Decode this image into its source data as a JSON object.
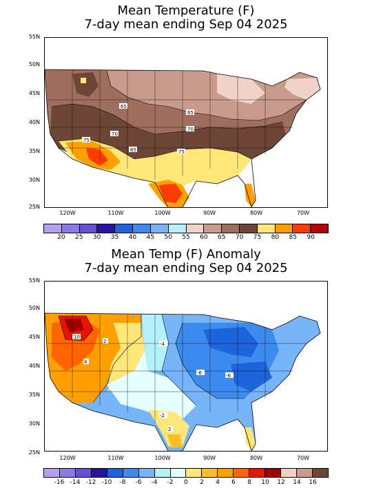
{
  "panels": [
    {
      "title_line1": "Mean Temperature (F)",
      "title_line2": "7-day mean ending Sep 04 2025",
      "lat_labels": [
        "55N",
        "50N",
        "45N",
        "40N",
        "35N",
        "30N",
        "25N"
      ],
      "lon_labels": [
        "120W",
        "110W",
        "100W",
        "90W",
        "80W",
        "70W"
      ],
      "contour_labels": [
        "65",
        "65",
        "70",
        "70",
        "75",
        "65",
        "75"
      ],
      "legend_labels": [
        "20",
        "25",
        "30",
        "35",
        "40",
        "45",
        "50",
        "55",
        "60",
        "65",
        "70",
        "75",
        "80",
        "85",
        "90"
      ],
      "legend_colors": [
        "#b4a0f0",
        "#8c78e6",
        "#6450d2",
        "#2814a0",
        "#1e64dc",
        "#3c8cf0",
        "#78b4f8",
        "#b4f0fa",
        "#f0d2c8",
        "#c89b8c",
        "#a06e5f",
        "#6e4637",
        "#ffe678",
        "#ffa000",
        "#ff3c00",
        "#b40000"
      ]
    },
    {
      "title_line1": "Mean Temp (F) Anomaly",
      "title_line2": "7-day mean ending Sep 04 2025",
      "lat_labels": [
        "55N",
        "50N",
        "45N",
        "40N",
        "35N",
        "30N",
        "25N"
      ],
      "lon_labels": [
        "120W",
        "110W",
        "100W",
        "90W",
        "80W",
        "70W"
      ],
      "contour_labels": [
        "10",
        "2",
        "4",
        "-4",
        "-6",
        "-6",
        "-2",
        "2"
      ],
      "legend_labels": [
        "-16",
        "-14",
        "-12",
        "-10",
        "-8",
        "-6",
        "-4",
        "-2",
        "0",
        "2",
        "4",
        "6",
        "8",
        "10",
        "12",
        "14",
        "16"
      ],
      "legend_colors": [
        "#b4a0f0",
        "#8c78e6",
        "#6450d2",
        "#2814a0",
        "#1e64dc",
        "#3c8cf0",
        "#78b4f8",
        "#b4f0fa",
        "#e6ffff",
        "#ffe678",
        "#ffbe28",
        "#ffa000",
        "#ff6400",
        "#e61400",
        "#a00000",
        "#f0d2c8",
        "#c89b8c",
        "#6e4637"
      ]
    }
  ]
}
